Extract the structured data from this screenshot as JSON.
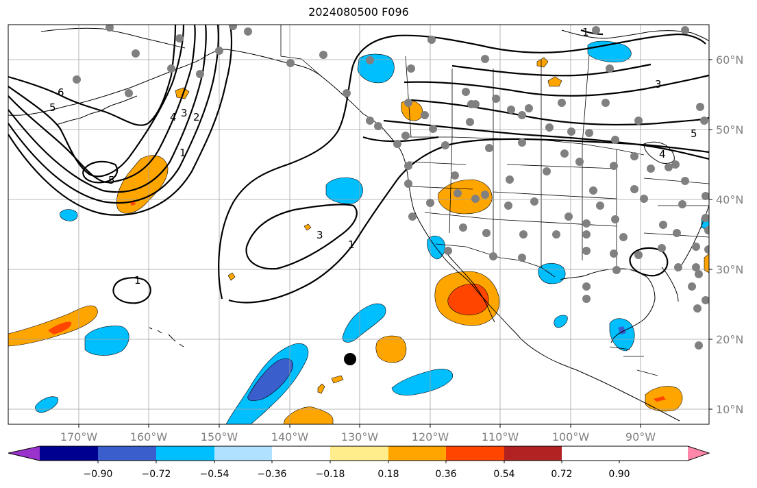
{
  "title": "2024080500 F096",
  "lon_labels": [
    "170°W",
    "160°W",
    "150°W",
    "140°W",
    "130°W",
    "120°W",
    "110°W",
    "100°W",
    "90°W"
  ],
  "lat_labels": [
    "60°N",
    "50°N",
    "40°N",
    "30°N",
    "20°N",
    "10°N"
  ],
  "colorbar": {
    "ticks": [
      "−0.90",
      "−0.72",
      "−0.54",
      "−0.36",
      "−0.18",
      "0.18",
      "0.36",
      "0.54",
      "0.72",
      "0.90"
    ],
    "colors": [
      "#9933cc",
      "#000090",
      "#3a5fcd",
      "#00bfff",
      "#b0e2ff",
      "#ffffff",
      "#ffec8b",
      "#ffa500",
      "#ff4500",
      "#b22222",
      "#ff88aa"
    ]
  },
  "contour_labels": [
    "6",
    "5",
    "4",
    "3",
    "2",
    "1",
    "5",
    "3",
    "1",
    "1",
    "1",
    "3",
    "5",
    "4"
  ],
  "colors": {
    "grid": "#a0a0a0",
    "contour": "#000000",
    "station": "#808080"
  }
}
